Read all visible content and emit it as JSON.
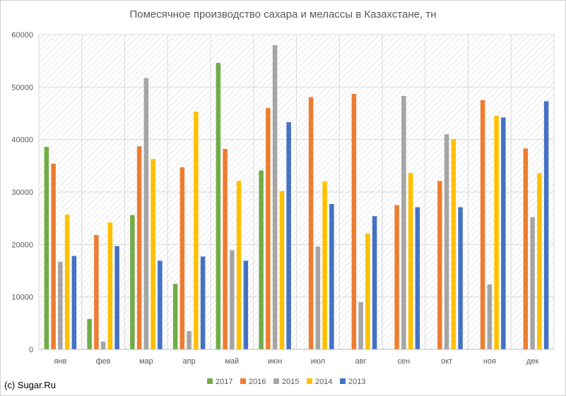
{
  "chart_data": {
    "type": "bar",
    "title": "Помесячное производство сахара и мелассы в Казахстане, тн",
    "categories": [
      "янв",
      "фев",
      "мар",
      "апр",
      "май",
      "июн",
      "июл",
      "авг",
      "сен",
      "окт",
      "ноя",
      "дек"
    ],
    "series": [
      {
        "name": "2017",
        "color": "#70AD47",
        "values": [
          38600,
          5800,
          25600,
          12500,
          54600,
          34100,
          null,
          null,
          null,
          null,
          null,
          null
        ]
      },
      {
        "name": "2016",
        "color": "#ED7D31",
        "values": [
          35400,
          21800,
          38700,
          34700,
          38200,
          46000,
          48100,
          48700,
          27500,
          32100,
          47500,
          38300
        ]
      },
      {
        "name": "2015",
        "color": "#A5A5A5",
        "values": [
          16700,
          1500,
          51700,
          3500,
          18900,
          58000,
          19600,
          9000,
          48300,
          41000,
          12400,
          25200
        ]
      },
      {
        "name": "2014",
        "color": "#FFC000",
        "values": [
          25700,
          24200,
          36300,
          45300,
          32100,
          30200,
          32000,
          22100,
          33600,
          40100,
          44500,
          33600
        ]
      },
      {
        "name": "2013",
        "color": "#4472C4",
        "values": [
          17800,
          19700,
          16900,
          17700,
          16900,
          43300,
          27700,
          25400,
          27100,
          27100,
          44200,
          47300
        ]
      }
    ],
    "ylim": [
      0,
      60000
    ],
    "yticks": [
      "0",
      "10000",
      "20000",
      "30000",
      "40000",
      "50000",
      "60000"
    ],
    "legend_position": "bottom",
    "grid": true
  },
  "footer": {
    "copyright": "(c) Sugar.Ru"
  }
}
